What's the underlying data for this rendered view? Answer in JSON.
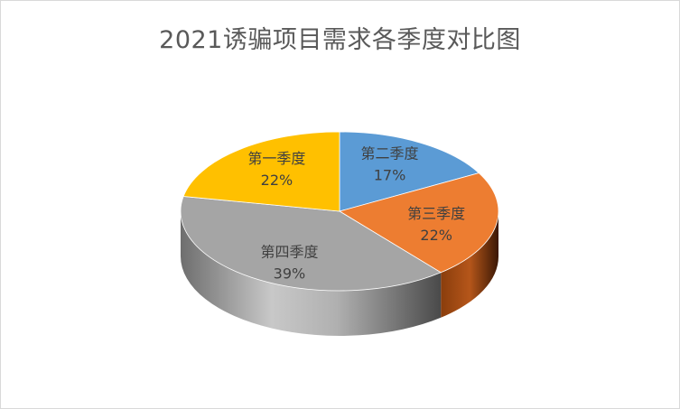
{
  "chart_data": {
    "type": "pie",
    "title": "2021诱骗项目需求各季度对比图",
    "categories": [
      "第一季度",
      "第二季度",
      "第三季度",
      "第四季度"
    ],
    "values": [
      22,
      17,
      22,
      39
    ],
    "value_labels": [
      "22%",
      "17%",
      "22%",
      "39%"
    ],
    "colors": [
      "#FFC000",
      "#5B9BD5",
      "#ED7D31",
      "#A5A5A5"
    ],
    "legend": "none",
    "style": "3d"
  }
}
